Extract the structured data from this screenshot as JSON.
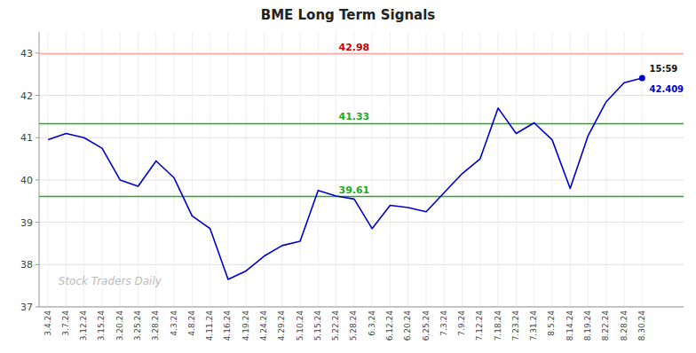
{
  "chart_data": {
    "type": "line",
    "title": "BME Long Term Signals",
    "categories": [
      "3.4.24",
      "3.7.24",
      "3.12.24",
      "3.15.24",
      "3.20.24",
      "3.25.24",
      "3.28.24",
      "4.3.24",
      "4.8.24",
      "4.11.24",
      "4.16.24",
      "4.19.24",
      "4.24.24",
      "4.29.24",
      "5.10.24",
      "5.15.24",
      "5.22.24",
      "5.28.24",
      "6.3.24",
      "6.12.24",
      "6.20.24",
      "6.25.24",
      "7.3.24",
      "7.9.24",
      "7.12.24",
      "7.18.24",
      "7.23.24",
      "7.31.24",
      "8.5.24",
      "8.14.24",
      "8.19.24",
      "8.22.24",
      "8.28.24",
      "8.30.24"
    ],
    "values": [
      40.95,
      41.1,
      41.0,
      40.75,
      40.0,
      39.85,
      40.45,
      40.05,
      39.15,
      38.85,
      37.65,
      37.85,
      38.2,
      38.45,
      38.55,
      39.75,
      39.62,
      39.55,
      38.85,
      39.4,
      39.35,
      39.25,
      39.7,
      40.15,
      40.5,
      41.7,
      41.1,
      41.35,
      40.95,
      39.8,
      41.05,
      41.85,
      42.3,
      42.409
    ],
    "color": "#0000cc",
    "ylim": [
      37,
      43.5
    ],
    "yticks": [
      37,
      38,
      39,
      40,
      41,
      42,
      43
    ],
    "grid": true,
    "reference_lines": [
      {
        "value": 42.98,
        "label": "42.98",
        "color": "#ffaaaa",
        "label_color": "#cc0000"
      },
      {
        "value": 41.33,
        "label": "41.33",
        "color": "#22aa22",
        "label_color": "#22aa22"
      },
      {
        "value": 39.61,
        "label": "39.61",
        "color": "#22aa22",
        "label_color": "#22aa22"
      }
    ],
    "last_point": {
      "time": "15:59",
      "value_label": "42.409",
      "color": "#0000cc"
    },
    "watermark": "Stock Traders Daily"
  }
}
